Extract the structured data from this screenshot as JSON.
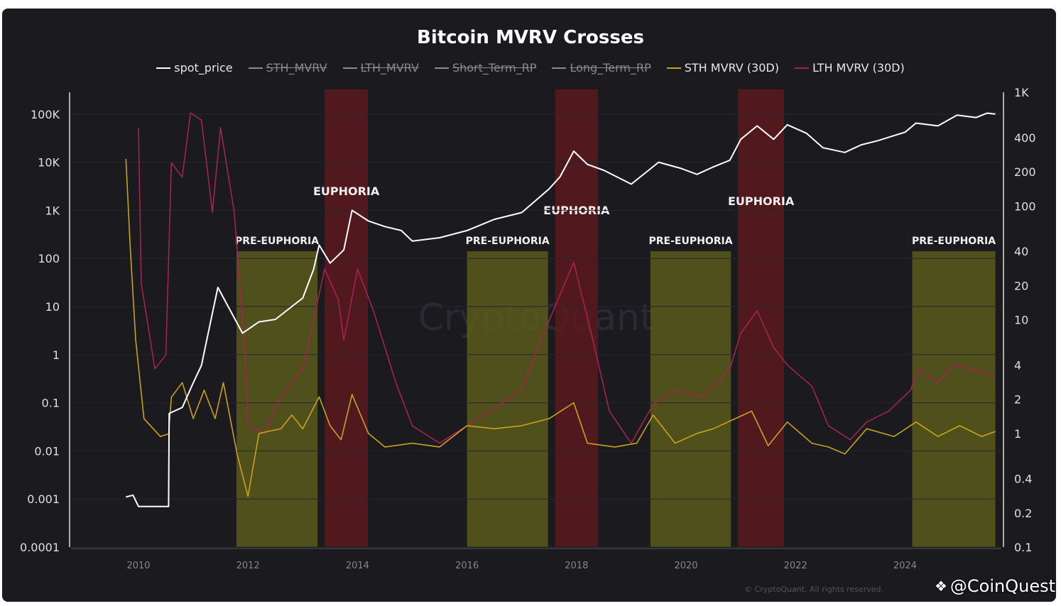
{
  "chart_data": {
    "type": "line",
    "title": "Bitcoin MVRV Crosses",
    "legend": [
      {
        "name": "spot_price",
        "color": "#ffffff",
        "visible": true
      },
      {
        "name": "STH_MVRV",
        "color": "#9a9a9a",
        "visible": false
      },
      {
        "name": "LTH_MVRV",
        "color": "#9a9a9a",
        "visible": false
      },
      {
        "name": "Short_Term_RP",
        "color": "#9a9a9a",
        "visible": false
      },
      {
        "name": "Long_Term_RP",
        "color": "#9a9a9a",
        "visible": false
      },
      {
        "name": "STH MVRV (30D)",
        "color": "#c9a21a",
        "visible": true
      },
      {
        "name": "LTH MVRV (30D)",
        "color": "#a3244f",
        "visible": true
      }
    ],
    "legend_position": "top",
    "x_ticks": [
      "2010",
      "2012",
      "2014",
      "2016",
      "2018",
      "2020",
      "2022",
      "2024"
    ],
    "x_range": [
      2008.8,
      2025.8
    ],
    "y_left": {
      "scale": "log",
      "range": [
        0.0001,
        200000
      ],
      "ticks": [
        {
          "v": 0.0001,
          "l": "0.0001"
        },
        {
          "v": 0.001,
          "l": "0.001"
        },
        {
          "v": 0.01,
          "l": "0.01"
        },
        {
          "v": 0.1,
          "l": "0.1"
        },
        {
          "v": 1,
          "l": "1"
        },
        {
          "v": 10,
          "l": "10"
        },
        {
          "v": 100,
          "l": "100"
        },
        {
          "v": 1000,
          "l": "1K"
        },
        {
          "v": 10000,
          "l": "10K"
        },
        {
          "v": 100000,
          "l": "100K"
        }
      ]
    },
    "y_right": {
      "scale": "log",
      "range": [
        0.1,
        1000
      ],
      "ticks": [
        {
          "v": 0.1,
          "l": "0.1"
        },
        {
          "v": 0.2,
          "l": "0.2"
        },
        {
          "v": 0.4,
          "l": "0.4"
        },
        {
          "v": 1,
          "l": "1"
        },
        {
          "v": 2,
          "l": "2"
        },
        {
          "v": 4,
          "l": "4"
        },
        {
          "v": 10,
          "l": "10"
        },
        {
          "v": 20,
          "l": "20"
        },
        {
          "v": 40,
          "l": "40"
        },
        {
          "v": 100,
          "l": "100"
        },
        {
          "v": 200,
          "l": "200"
        },
        {
          "v": 400,
          "l": "400"
        },
        {
          "v": 1000,
          "l": "1K"
        }
      ]
    },
    "grid": true,
    "series": [
      {
        "name": "spot_price",
        "axis": "left",
        "color": "#ffffff",
        "points": [
          [
            2009.77,
            0.0011
          ],
          [
            2009.9,
            0.0012
          ],
          [
            2010.0,
            0.0007
          ],
          [
            2010.55,
            0.0007
          ],
          [
            2010.56,
            0.06
          ],
          [
            2010.8,
            0.08
          ],
          [
            2011.0,
            0.26
          ],
          [
            2011.15,
            0.6
          ],
          [
            2011.3,
            3.9
          ],
          [
            2011.45,
            25
          ],
          [
            2011.6,
            12
          ],
          [
            2011.9,
            2.8
          ],
          [
            2012.2,
            4.8
          ],
          [
            2012.5,
            5.4
          ],
          [
            2012.8,
            10
          ],
          [
            2013.0,
            15
          ],
          [
            2013.2,
            60
          ],
          [
            2013.3,
            190
          ],
          [
            2013.5,
            80
          ],
          [
            2013.75,
            150
          ],
          [
            2013.9,
            1000
          ],
          [
            2014.2,
            600
          ],
          [
            2014.5,
            460
          ],
          [
            2014.8,
            380
          ],
          [
            2015.0,
            230
          ],
          [
            2015.5,
            270
          ],
          [
            2016.0,
            380
          ],
          [
            2016.5,
            650
          ],
          [
            2017.0,
            900
          ],
          [
            2017.5,
            2800
          ],
          [
            2017.7,
            5000
          ],
          [
            2017.95,
            17000
          ],
          [
            2018.2,
            9000
          ],
          [
            2018.5,
            6800
          ],
          [
            2019.0,
            3500
          ],
          [
            2019.5,
            10000
          ],
          [
            2019.9,
            7500
          ],
          [
            2020.2,
            5600
          ],
          [
            2020.5,
            8000
          ],
          [
            2020.8,
            11000
          ],
          [
            2021.0,
            30000
          ],
          [
            2021.3,
            57000
          ],
          [
            2021.6,
            30000
          ],
          [
            2021.85,
            60000
          ],
          [
            2022.2,
            40000
          ],
          [
            2022.5,
            20000
          ],
          [
            2022.9,
            16000
          ],
          [
            2023.2,
            23000
          ],
          [
            2023.5,
            28000
          ],
          [
            2024.0,
            42000
          ],
          [
            2024.2,
            65000
          ],
          [
            2024.6,
            57000
          ],
          [
            2024.95,
            95000
          ],
          [
            2025.3,
            85000
          ],
          [
            2025.5,
            105000
          ],
          [
            2025.65,
            100000
          ]
        ]
      },
      {
        "name": "STH MVRV (30D)",
        "axis": "right",
        "color": "#c9a21a",
        "points": [
          [
            2009.77,
            260
          ],
          [
            2009.85,
            43
          ],
          [
            2009.95,
            6.6
          ],
          [
            2010.1,
            1.35
          ],
          [
            2010.4,
            0.94
          ],
          [
            2010.55,
            0.99
          ],
          [
            2010.6,
            2.08
          ],
          [
            2010.8,
            2.8
          ],
          [
            2011.0,
            1.35
          ],
          [
            2011.2,
            2.4
          ],
          [
            2011.4,
            1.35
          ],
          [
            2011.55,
            2.8
          ],
          [
            2011.8,
            0.66
          ],
          [
            2012.0,
            0.28
          ],
          [
            2012.2,
            1.0
          ],
          [
            2012.6,
            1.1
          ],
          [
            2012.8,
            1.45
          ],
          [
            2013.0,
            1.1
          ],
          [
            2013.3,
            2.1
          ],
          [
            2013.5,
            1.17
          ],
          [
            2013.7,
            0.88
          ],
          [
            2013.9,
            2.2
          ],
          [
            2014.2,
            1.0
          ],
          [
            2014.5,
            0.76
          ],
          [
            2015.0,
            0.82
          ],
          [
            2015.5,
            0.76
          ],
          [
            2016.0,
            1.17
          ],
          [
            2016.5,
            1.1
          ],
          [
            2017.0,
            1.17
          ],
          [
            2017.5,
            1.35
          ],
          [
            2017.95,
            1.86
          ],
          [
            2018.2,
            0.82
          ],
          [
            2018.7,
            0.76
          ],
          [
            2019.1,
            0.82
          ],
          [
            2019.4,
            1.45
          ],
          [
            2019.8,
            0.82
          ],
          [
            2020.2,
            1.0
          ],
          [
            2020.5,
            1.1
          ],
          [
            2020.9,
            1.35
          ],
          [
            2021.2,
            1.57
          ],
          [
            2021.5,
            0.78
          ],
          [
            2021.85,
            1.26
          ],
          [
            2022.3,
            0.82
          ],
          [
            2022.6,
            0.76
          ],
          [
            2022.9,
            0.66
          ],
          [
            2023.3,
            1.1
          ],
          [
            2023.8,
            0.94
          ],
          [
            2024.2,
            1.26
          ],
          [
            2024.6,
            0.94
          ],
          [
            2025.0,
            1.17
          ],
          [
            2025.4,
            0.94
          ],
          [
            2025.65,
            1.04
          ]
        ]
      },
      {
        "name": "LTH MVRV (30D)",
        "axis": "right",
        "color": "#a3244f",
        "points": [
          [
            2010.0,
            490
          ],
          [
            2010.05,
            21
          ],
          [
            2010.3,
            3.7
          ],
          [
            2010.5,
            4.9
          ],
          [
            2010.6,
            240
          ],
          [
            2010.8,
            180
          ],
          [
            2010.95,
            660
          ],
          [
            2011.15,
            570
          ],
          [
            2011.35,
            88
          ],
          [
            2011.5,
            490
          ],
          [
            2011.75,
            88
          ],
          [
            2011.95,
            4.9
          ],
          [
            2012.0,
            1.17
          ],
          [
            2012.3,
            1.0
          ],
          [
            2012.6,
            2.1
          ],
          [
            2013.0,
            3.7
          ],
          [
            2013.2,
            10
          ],
          [
            2013.4,
            28
          ],
          [
            2013.65,
            15
          ],
          [
            2013.75,
            6.6
          ],
          [
            2014.0,
            28
          ],
          [
            2014.3,
            11.7
          ],
          [
            2014.7,
            2.8
          ],
          [
            2015.0,
            1.17
          ],
          [
            2015.5,
            0.82
          ],
          [
            2016.0,
            1.17
          ],
          [
            2016.5,
            1.67
          ],
          [
            2017.0,
            2.4
          ],
          [
            2017.4,
            7.6
          ],
          [
            2017.95,
            32
          ],
          [
            2018.3,
            6.6
          ],
          [
            2018.6,
            1.57
          ],
          [
            2019.0,
            0.82
          ],
          [
            2019.4,
            1.8
          ],
          [
            2019.8,
            2.4
          ],
          [
            2020.3,
            2.1
          ],
          [
            2020.8,
            3.7
          ],
          [
            2021.0,
            7.6
          ],
          [
            2021.3,
            12
          ],
          [
            2021.6,
            5.7
          ],
          [
            2021.85,
            4.0
          ],
          [
            2022.3,
            2.6
          ],
          [
            2022.6,
            1.17
          ],
          [
            2023.0,
            0.88
          ],
          [
            2023.3,
            1.26
          ],
          [
            2023.7,
            1.57
          ],
          [
            2024.1,
            2.4
          ],
          [
            2024.25,
            3.7
          ],
          [
            2024.6,
            2.8
          ],
          [
            2024.9,
            4.0
          ],
          [
            2025.2,
            3.7
          ],
          [
            2025.65,
            3.2
          ]
        ]
      }
    ],
    "annotations": [
      {
        "label": "PRE-EUPHORIA",
        "type": "pre",
        "x0": 2011.79,
        "x1": 2013.27,
        "top_right": 40
      },
      {
        "label": "EUPHORIA",
        "type": "euphoria",
        "x0": 2013.4,
        "x1": 2014.19,
        "top_right": 1000
      },
      {
        "label": "PRE-EUPHORIA",
        "type": "pre",
        "x0": 2016.0,
        "x1": 2017.48,
        "top_right": 40
      },
      {
        "label": "EUPHORIA",
        "type": "euphoria",
        "x0": 2017.61,
        "x1": 2018.39,
        "top_right": 1000
      },
      {
        "label": "PRE-EUPHORIA",
        "type": "pre",
        "x0": 2019.35,
        "x1": 2020.82,
        "top_right": 40
      },
      {
        "label": "EUPHORIA",
        "type": "euphoria",
        "x0": 2020.95,
        "x1": 2021.79,
        "top_right": 1000
      },
      {
        "label": "PRE-EUPHORIA",
        "type": "pre",
        "x0": 2024.13,
        "x1": 2025.65,
        "top_right": 40
      }
    ],
    "colors": {
      "pre": "#5a5a1c",
      "euphoria": "#5c1a1e"
    }
  },
  "watermark": "CryptoQuant",
  "credit": "© CryptoQuant. All rights reserved.",
  "brand": "@CoinQuest"
}
